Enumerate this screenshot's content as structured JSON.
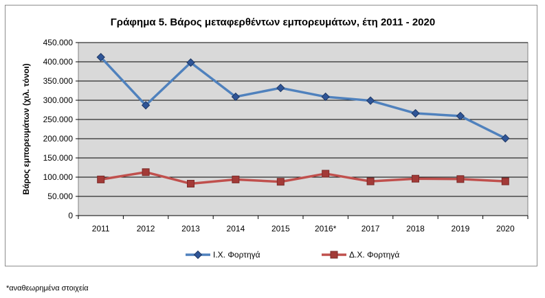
{
  "chart_data": {
    "type": "line",
    "title": "Γράφημα 5. Βάρος μεταφερθέντων εμπορευμάτων, έτη 2011 - 2020",
    "xlabel": "",
    "ylabel": "Βάρος εμπορευμάτων (χιλ. τόνοι)",
    "categories": [
      "2011",
      "2012",
      "2013",
      "2014",
      "2015",
      "2016*",
      "2017",
      "2018",
      "2019",
      "2020"
    ],
    "ylim": [
      0,
      450000
    ],
    "yticks": [
      0,
      50000,
      100000,
      150000,
      200000,
      250000,
      300000,
      350000,
      400000,
      450000
    ],
    "ytick_labels": [
      "0",
      "50.000",
      "100.000",
      "150.000",
      "200.000",
      "250.000",
      "300.000",
      "350.000",
      "400.000",
      "450.000"
    ],
    "grid": true,
    "legend_position": "bottom",
    "plot_background": "#d9d9d9",
    "series": [
      {
        "name": "Ι.Χ. Φορτηγά",
        "color": "#4f81bd",
        "marker": "diamond",
        "values": [
          412000,
          287000,
          398000,
          309000,
          332000,
          309000,
          299000,
          266000,
          259000,
          201000
        ]
      },
      {
        "name": "Δ.Χ. Φορτηγά",
        "color": "#c0504d",
        "marker": "square",
        "values": [
          94000,
          113000,
          83000,
          94000,
          88000,
          109000,
          89000,
          96000,
          95000,
          89000
        ]
      }
    ]
  },
  "footnote": "*αναθεωρημένα στοιχεία"
}
